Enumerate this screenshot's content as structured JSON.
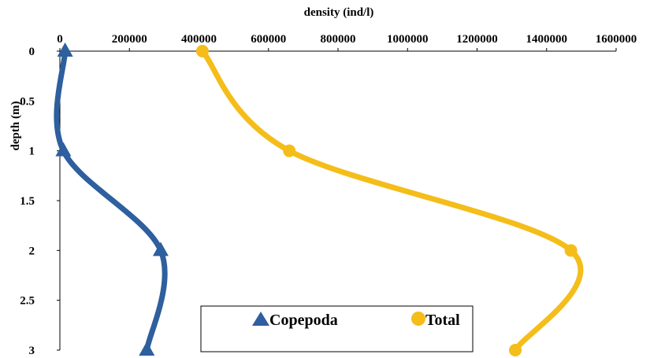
{
  "chart_data": {
    "type": "line",
    "title": "",
    "xlabel": "density (ind/l)",
    "ylabel": "depth (m)",
    "xlim": [
      0,
      1600000
    ],
    "ylim": [
      0,
      3
    ],
    "y_inverted": true,
    "x_ticks": [
      "0",
      "200000",
      "400000",
      "600000",
      "800000",
      "1000000",
      "1200000",
      "1400000",
      "1600000"
    ],
    "y_ticks": [
      "0",
      "0.5",
      "1",
      "1.5",
      "2",
      "2.5",
      "3"
    ],
    "legend_position": "bottom-center",
    "series": [
      {
        "name": "Copepoda",
        "color": "#2e5f9e",
        "marker": "triangle",
        "points": [
          {
            "depth": 0,
            "density": 15000
          },
          {
            "depth": 1,
            "density": 10000
          },
          {
            "depth": 2,
            "density": 290000
          },
          {
            "depth": 3,
            "density": 250000
          }
        ]
      },
      {
        "name": "Total",
        "color": "#f4bd19",
        "marker": "circle",
        "points": [
          {
            "depth": 0,
            "density": 410000
          },
          {
            "depth": 1,
            "density": 660000
          },
          {
            "depth": 2,
            "density": 1470000
          },
          {
            "depth": 3,
            "density": 1310000
          }
        ]
      }
    ]
  }
}
